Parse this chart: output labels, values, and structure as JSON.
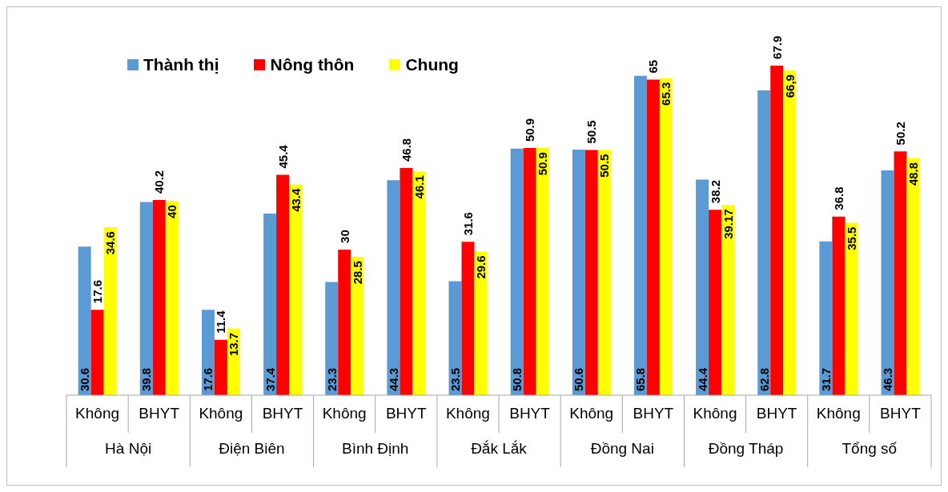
{
  "chart_data": {
    "type": "bar",
    "categories": [
      "Không",
      "BHYT",
      "Không",
      "BHYT",
      "Không",
      "BHYT",
      "Không",
      "BHYT",
      "Không",
      "BHYT",
      "Không",
      "BHYT",
      "Không",
      "BHYT"
    ],
    "annotations": [
      "Hà Nội",
      "Điện Biên",
      "Bình Định",
      "Đắk Lắk",
      "Đồng Nai",
      "Đồng Tháp",
      "Tổng số"
    ],
    "series": [
      {
        "name": "Thành thị",
        "color": "#5b9bd5",
        "values": [
          30.6,
          39.8,
          17.6,
          37.4,
          23.3,
          44.3,
          23.5,
          50.8,
          50.6,
          65.8,
          44.4,
          62.8,
          31.7,
          46.3
        ],
        "value_labels": [
          "30.6",
          "39.8",
          "17.6",
          "37.4",
          "23.3",
          "44.3",
          "23.5",
          "50.8",
          "50.6",
          "65.8",
          "44.4",
          "62.8",
          "31.7",
          "46.3"
        ]
      },
      {
        "name": "Nông thôn",
        "color": "#ff0000",
        "values": [
          17.6,
          40.2,
          11.4,
          45.4,
          30,
          46.8,
          31.6,
          50.9,
          50.5,
          65,
          38.2,
          67.9,
          36.8,
          50.2
        ],
        "value_labels": [
          "17.6",
          "40.2",
          "11.4",
          "45.4",
          "30",
          "46.8",
          "31.6",
          "50.9",
          "50.5",
          "65",
          "38.2",
          "67.9",
          "36.8",
          "50.2"
        ]
      },
      {
        "name": "Chung",
        "color": "#ffff00",
        "values": [
          34.6,
          40,
          13.7,
          43.4,
          28.5,
          46.1,
          29.6,
          50.9,
          50.5,
          65.3,
          39.17,
          66.9,
          35.5,
          48.8
        ],
        "value_labels": [
          "34.6",
          "40",
          "13.7",
          "43.4",
          "28.5",
          "46.1",
          "29.6",
          "50.9",
          "50.5",
          "65.3",
          "39.17",
          "66,9",
          "35.5",
          "48.8"
        ]
      }
    ],
    "legend": "top left",
    "grid": false
  }
}
